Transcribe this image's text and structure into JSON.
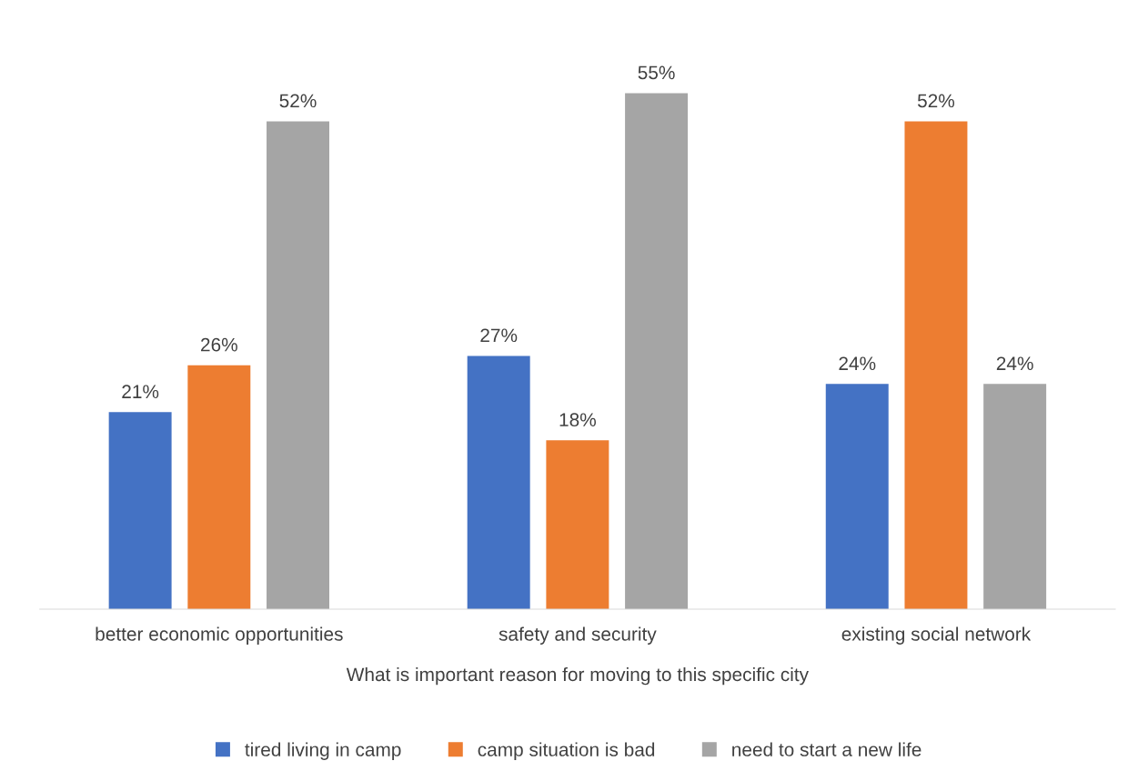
{
  "chart_data": {
    "type": "bar",
    "xlabel": "What is important reason for moving to this specific city",
    "categories": [
      "better economic opportunities",
      "safety and security",
      "existing social network"
    ],
    "series": [
      {
        "name": "tired living in camp",
        "color": "#4472c4",
        "values": [
          21,
          27,
          24
        ],
        "value_labels": [
          "21%",
          "27%",
          "24%"
        ]
      },
      {
        "name": "camp situation is bad",
        "color": "#ed7d31",
        "values": [
          26,
          18,
          52
        ],
        "value_labels": [
          "26%",
          "18%",
          "52%"
        ]
      },
      {
        "name": "need to start a new life",
        "color": "#a5a5a5",
        "values": [
          52,
          55,
          24
        ],
        "value_labels": [
          "52%",
          "55%",
          "24%"
        ]
      }
    ],
    "legend": "bottom",
    "grid": false,
    "tick_labels": "x"
  }
}
